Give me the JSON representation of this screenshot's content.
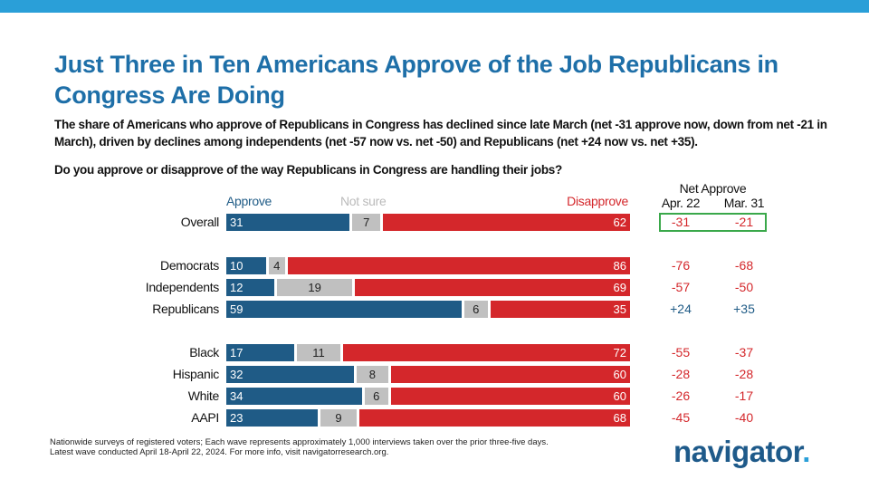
{
  "title": "Just Three in Ten Americans Approve of the Job Republicans in Congress Are Doing",
  "subtitle": "The share of Americans who approve of Republicans in Congress has declined since late March (net -31 approve now, down from net -21 in March), driven by declines among independents (net -57 now vs. net -50) and Republicans (net +24 now vs. net +35).",
  "question": "Do you approve or disapprove of the way Republicans in Congress are handling their jobs?",
  "footnote_1": "Nationwide surveys of registered voters; Each wave represents approximately 1,000 interviews taken over the prior three-five days.",
  "footnote_2": "Latest wave conducted April 18-April 22, 2024. For more info, visit navigatorresearch.org.",
  "logo": "navigator",
  "colors": {
    "approve": "#1f5b86",
    "not_sure": "#c0c0c0",
    "disapprove": "#d4272b",
    "net_negative": "#d4272b",
    "net_positive": "#1f5b86",
    "highlight_box": "#3aa84a"
  },
  "chart_data": {
    "type": "bar",
    "stacked": true,
    "legend": [
      "Approve",
      "Not sure",
      "Disapprove"
    ],
    "net_header": "Net Approve",
    "net_columns": [
      "Apr. 22",
      "Mar. 31"
    ],
    "rows": [
      {
        "label": "Overall",
        "approve": 31,
        "not_sure": 7,
        "disapprove": 62,
        "net_apr22": "-31",
        "net_mar31": "-21",
        "highlight": true
      },
      {
        "label": "Democrats",
        "approve": 10,
        "not_sure": 4,
        "disapprove": 86,
        "net_apr22": "-76",
        "net_mar31": "-68"
      },
      {
        "label": "Independents",
        "approve": 12,
        "not_sure": 19,
        "disapprove": 69,
        "net_apr22": "-57",
        "net_mar31": "-50"
      },
      {
        "label": "Republicans",
        "approve": 59,
        "not_sure": 6,
        "disapprove": 35,
        "net_apr22": "+24",
        "net_mar31": "+35"
      },
      {
        "label": "Black",
        "approve": 17,
        "not_sure": 11,
        "disapprove": 72,
        "net_apr22": "-55",
        "net_mar31": "-37"
      },
      {
        "label": "Hispanic",
        "approve": 32,
        "not_sure": 8,
        "disapprove": 60,
        "net_apr22": "-28",
        "net_mar31": "-28"
      },
      {
        "label": "White",
        "approve": 34,
        "not_sure": 6,
        "disapprove": 60,
        "net_apr22": "-26",
        "net_mar31": "-17"
      },
      {
        "label": "AAPI",
        "approve": 23,
        "not_sure": 9,
        "disapprove": 68,
        "net_apr22": "-45",
        "net_mar31": "-40"
      }
    ]
  }
}
